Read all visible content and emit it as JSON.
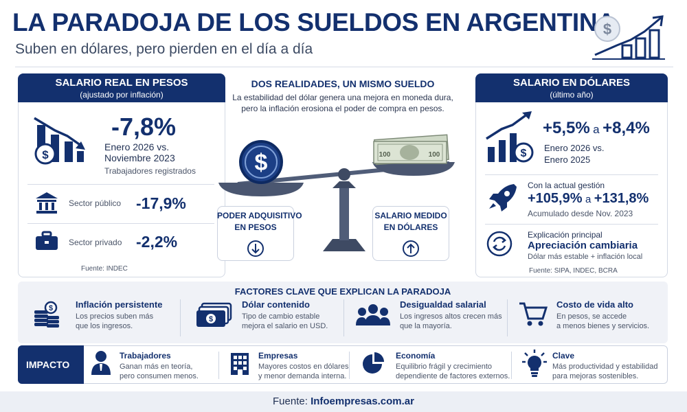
{
  "header": {
    "title": "LA PARADOJA DE LOS SUELDOS EN ARGENTINA",
    "subtitle": "Suben en dólares, pero pierden en el día a día"
  },
  "left_panel": {
    "banner_title": "SALARIO REAL EN PESOS",
    "banner_sub": "(ajustado por inflación)",
    "main_value": "-7,8%",
    "period_line1": "Enero 2026 vs.",
    "period_line2": "Noviembre 2023",
    "note": "Trabajadores registrados",
    "rows": [
      {
        "label": "Sector público",
        "value": "-17,9%",
        "icon": "bank-icon"
      },
      {
        "label": "Sector privado",
        "value": "-2,2%",
        "icon": "briefcase-icon"
      }
    ],
    "source": "Fuente: INDEC"
  },
  "center": {
    "title": "DOS REALIDADES, UN MISMO SUELDO",
    "text_line1": "La estabilidad del dólar genera una mejora en moneda dura,",
    "text_line2": "pero la inflación erosiona el poder de compra en pesos.",
    "left_box_line1": "PODER ADQUISITIVO",
    "left_box_line2": "EN PESOS",
    "right_box_line1": "SALARIO MEDIDO",
    "right_box_line2": "EN DÓLARES",
    "coin_symbol": "$"
  },
  "right_panel": {
    "banner_title": "SALARIO EN DÓLARES",
    "banner_sub": "(último año)",
    "range_a": "+5,5%",
    "range_joiner": "a",
    "range_b": "+8,4%",
    "period_line1": "Enero 2026 vs.",
    "period_line2": "Enero 2025",
    "gestion_label": "Con la actual gestión",
    "gestion_a": "+105,9%",
    "gestion_joiner": "a",
    "gestion_b": "+131,8%",
    "gestion_note": "Acumulado desde Nov. 2023",
    "explic_label": "Explicación principal",
    "explic_value": "Apreciación cambiaria",
    "explic_note": "Dólar más estable + inflación local",
    "source": "Fuente: SIPA, INDEC, BCRA"
  },
  "factors": {
    "title": "FACTORES CLAVE QUE EXPLICAN LA PARADOJA",
    "items": [
      {
        "title": "Inflación persistente",
        "line1": "Los precios suben más",
        "line2": "que los ingresos.",
        "icon": "coins-icon"
      },
      {
        "title": "Dólar contenido",
        "line1": "Tipo de cambio estable",
        "line2": "mejora el salario en USD.",
        "icon": "banknotes-icon"
      },
      {
        "title": "Desigualdad salarial",
        "line1": "Los ingresos altos crecen más",
        "line2": "que la mayoría.",
        "icon": "people-icon"
      },
      {
        "title": "Costo de vida alto",
        "line1": "En pesos, se accede",
        "line2": "a menos bienes y servicios.",
        "icon": "cart-icon"
      }
    ]
  },
  "impact": {
    "label": "IMPACTO",
    "items": [
      {
        "title": "Trabajadores",
        "line1": "Ganan más en teoría,",
        "line2": "pero consumen menos.",
        "icon": "worker-icon"
      },
      {
        "title": "Empresas",
        "line1": "Mayores costos en dólares",
        "line2": "y menor demanda interna.",
        "icon": "building-icon"
      },
      {
        "title": "Economía",
        "line1": "Equilibrio frágil y crecimiento",
        "line2": "dependiente de factores externos.",
        "icon": "pie-chart-icon"
      },
      {
        "title": "Clave",
        "line1": "Más productividad y estabilidad",
        "line2": "para mejoras sostenibles.",
        "icon": "lightbulb-icon"
      }
    ]
  },
  "footer": {
    "label": "Fuente:",
    "site": "Infoempresas.com.ar"
  },
  "colors": {
    "navy": "#13306e",
    "light_bg": "#f0f2f7",
    "text_grey": "#4a5468"
  }
}
